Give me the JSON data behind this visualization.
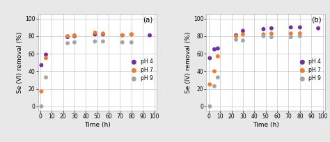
{
  "panel_a": {
    "label": "(a)",
    "ylabel": "Se (VI) removal (%)",
    "ph4": {
      "x": [
        1,
        5,
        24,
        30,
        48,
        55,
        72,
        80,
        96
      ],
      "y": [
        47,
        59,
        79,
        80,
        82,
        82,
        81,
        82,
        81
      ]
    },
    "ph7": {
      "x": [
        1,
        5,
        24,
        30,
        48,
        55,
        72,
        80
      ],
      "y": [
        17,
        55,
        80,
        81,
        84,
        83,
        81,
        82
      ]
    },
    "ph9": {
      "x": [
        1,
        5,
        24,
        30,
        48,
        55,
        72,
        80
      ],
      "y": [
        0,
        33,
        72,
        73,
        74,
        74,
        73,
        73
      ]
    }
  },
  "panel_b": {
    "label": "(b)",
    "ylabel": "Se (IV) removal (%)",
    "ph4": {
      "x": [
        1,
        5,
        8,
        24,
        30,
        48,
        55,
        72,
        80,
        96
      ],
      "y": [
        55,
        65,
        66,
        81,
        86,
        88,
        89,
        90,
        90,
        89
      ]
    },
    "ph7": {
      "x": [
        1,
        5,
        8,
        24,
        30,
        48,
        55,
        72,
        80
      ],
      "y": [
        25,
        40,
        57,
        80,
        82,
        82,
        83,
        83,
        83
      ]
    },
    "ph9": {
      "x": [
        1,
        5,
        8,
        24,
        30,
        48,
        55,
        72,
        80
      ],
      "y": [
        0,
        23,
        33,
        76,
        75,
        80,
        79,
        79,
        80
      ]
    }
  },
  "xlabel": "Time (h)",
  "xlim": [
    -2,
    102
  ],
  "ylim": [
    -5,
    105
  ],
  "xticks": [
    0,
    10,
    20,
    30,
    40,
    50,
    60,
    70,
    80,
    90,
    100
  ],
  "yticks": [
    0,
    20,
    40,
    60,
    80,
    100
  ],
  "color_ph4": "#7030a0",
  "color_ph7": "#ed7d31",
  "color_ph9": "#a5a5a5",
  "marker_size": 18,
  "plot_bg": "#ffffff",
  "fig_bg": "#e8e8e8",
  "grid_color": "#d0d0d0",
  "legend_labels": [
    "pH 4",
    "pH 7",
    "pH 9"
  ]
}
